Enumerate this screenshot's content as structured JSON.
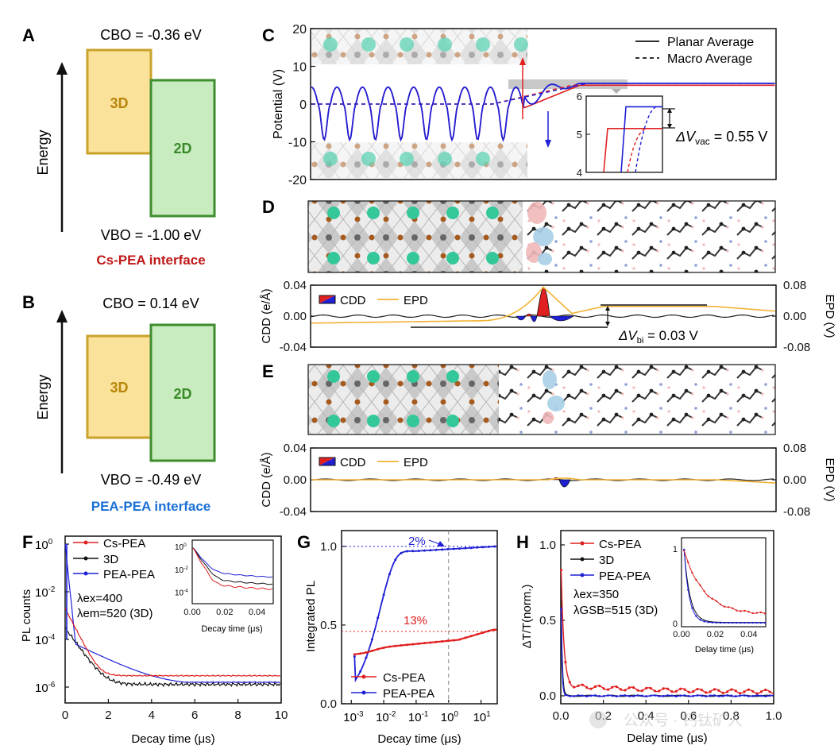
{
  "panelA": {
    "letter": "A",
    "cbo": "CBO = -0.36 eV",
    "vbo": "VBO = -1.00 eV",
    "block3d": "3D",
    "block2d": "2D",
    "energy": "Energy",
    "interface": "Cs-PEA interface"
  },
  "panelB": {
    "letter": "B",
    "cbo": "CBO = 0.14 eV",
    "vbo": "VBO = -0.49 eV",
    "block3d": "3D",
    "block2d": "2D",
    "energy": "Energy",
    "interface": "PEA-PEA interface"
  },
  "panelC": {
    "letter": "C",
    "ylabel": "Potential (V)",
    "yticks": [
      "20",
      "10",
      "0",
      "-10",
      "-20"
    ],
    "legend_planar": "Planar Average",
    "legend_macro": "Macro Average",
    "inset_yticks": [
      "6",
      "5",
      "4"
    ],
    "dv_symbol": "ΔV",
    "dv_sub": "vac",
    "dv_value": " = 0.55 V"
  },
  "panelD": {
    "letter": "D",
    "ylabel_left": "CDD (e/Å)",
    "ylabel_right": "EPD (V)",
    "yticks_left": [
      "0.04",
      "0.00",
      "-0.04"
    ],
    "yticks_right": [
      "0.08",
      "0.00",
      "-0.08"
    ],
    "legend_cdd": "CDD",
    "legend_epd": "EPD",
    "dv_symbol": "ΔV",
    "dv_sub": "bi",
    "dv_value": " = 0.03 V"
  },
  "panelE": {
    "letter": "E",
    "ylabel_left": "CDD (e/Å)",
    "ylabel_right": "EPD (V)",
    "yticks_left": [
      "0.04",
      "0.00",
      "-0.04"
    ],
    "yticks_right": [
      "0.08",
      "0.00",
      "-0.08"
    ],
    "legend_cdd": "CDD",
    "legend_epd": "EPD"
  },
  "panelF": {
    "letter": "F",
    "ylabel": "PL counts",
    "xlabel": "Decay time (μs)",
    "xticks": [
      "0",
      "2",
      "4",
      "6",
      "8",
      "10"
    ],
    "yticks": [
      "10",
      "10",
      "10",
      "10"
    ],
    "yexp": [
      "0",
      "-2",
      "-4",
      "-6"
    ],
    "legend": [
      "Cs-PEA",
      "3D",
      "PEA-PEA"
    ],
    "lambda_ex": "λex=400",
    "lambda_em": "λem=520 (3D)",
    "inset_xlabel": "Decay time (μs)",
    "inset_xticks": [
      "0.00",
      "0.02",
      "0.04"
    ],
    "inset_yexp": [
      "0",
      "-2",
      "-4"
    ]
  },
  "panelG": {
    "letter": "G",
    "ylabel": "Integrated PL",
    "xlabel": "Decay time (μs)",
    "yticks": [
      "1.0",
      "0.5",
      "0.0"
    ],
    "xexp": [
      "-3",
      "-2",
      "-1",
      "0",
      "1"
    ],
    "legend": [
      "Cs-PEA",
      "PEA-PEA"
    ],
    "annot_blue": "2%",
    "annot_red": "13%"
  },
  "panelH": {
    "letter": "H",
    "ylabel": "ΔT/T(norm.)",
    "xlabel": "Delay time (μs)",
    "yticks": [
      "1.0",
      "0.5",
      "0.0"
    ],
    "xticks": [
      "0.0",
      "0.2",
      "0.4",
      "0.6",
      "0.8",
      "1.0"
    ],
    "legend": [
      "Cs-PEA",
      "3D",
      "PEA-PEA"
    ],
    "lambda_ex": "λex=350",
    "lambda_gsb": "λGSB=515 (3D)",
    "inset_xlabel": "Delay time (μs)",
    "inset_xticks": [
      "0.00",
      "0.02",
      "0.04"
    ],
    "inset_yticks": [
      "1",
      "0"
    ]
  },
  "watermark": "公众号 · 钙钛矿人",
  "colors": {
    "red": "#e02020",
    "blue": "#1f1fd6",
    "black": "#111111",
    "orange": "#f2b233",
    "yellow_fill": "#fbe29a",
    "yellow_edge": "#c9a22a",
    "green_fill": "#c8ebbf",
    "green_edge": "#3e8e2e",
    "darkred_text": "#c01818",
    "blue_text": "#1a6fd6",
    "label_3d": "#b8860b",
    "label_2d": "#3a8a2a"
  }
}
